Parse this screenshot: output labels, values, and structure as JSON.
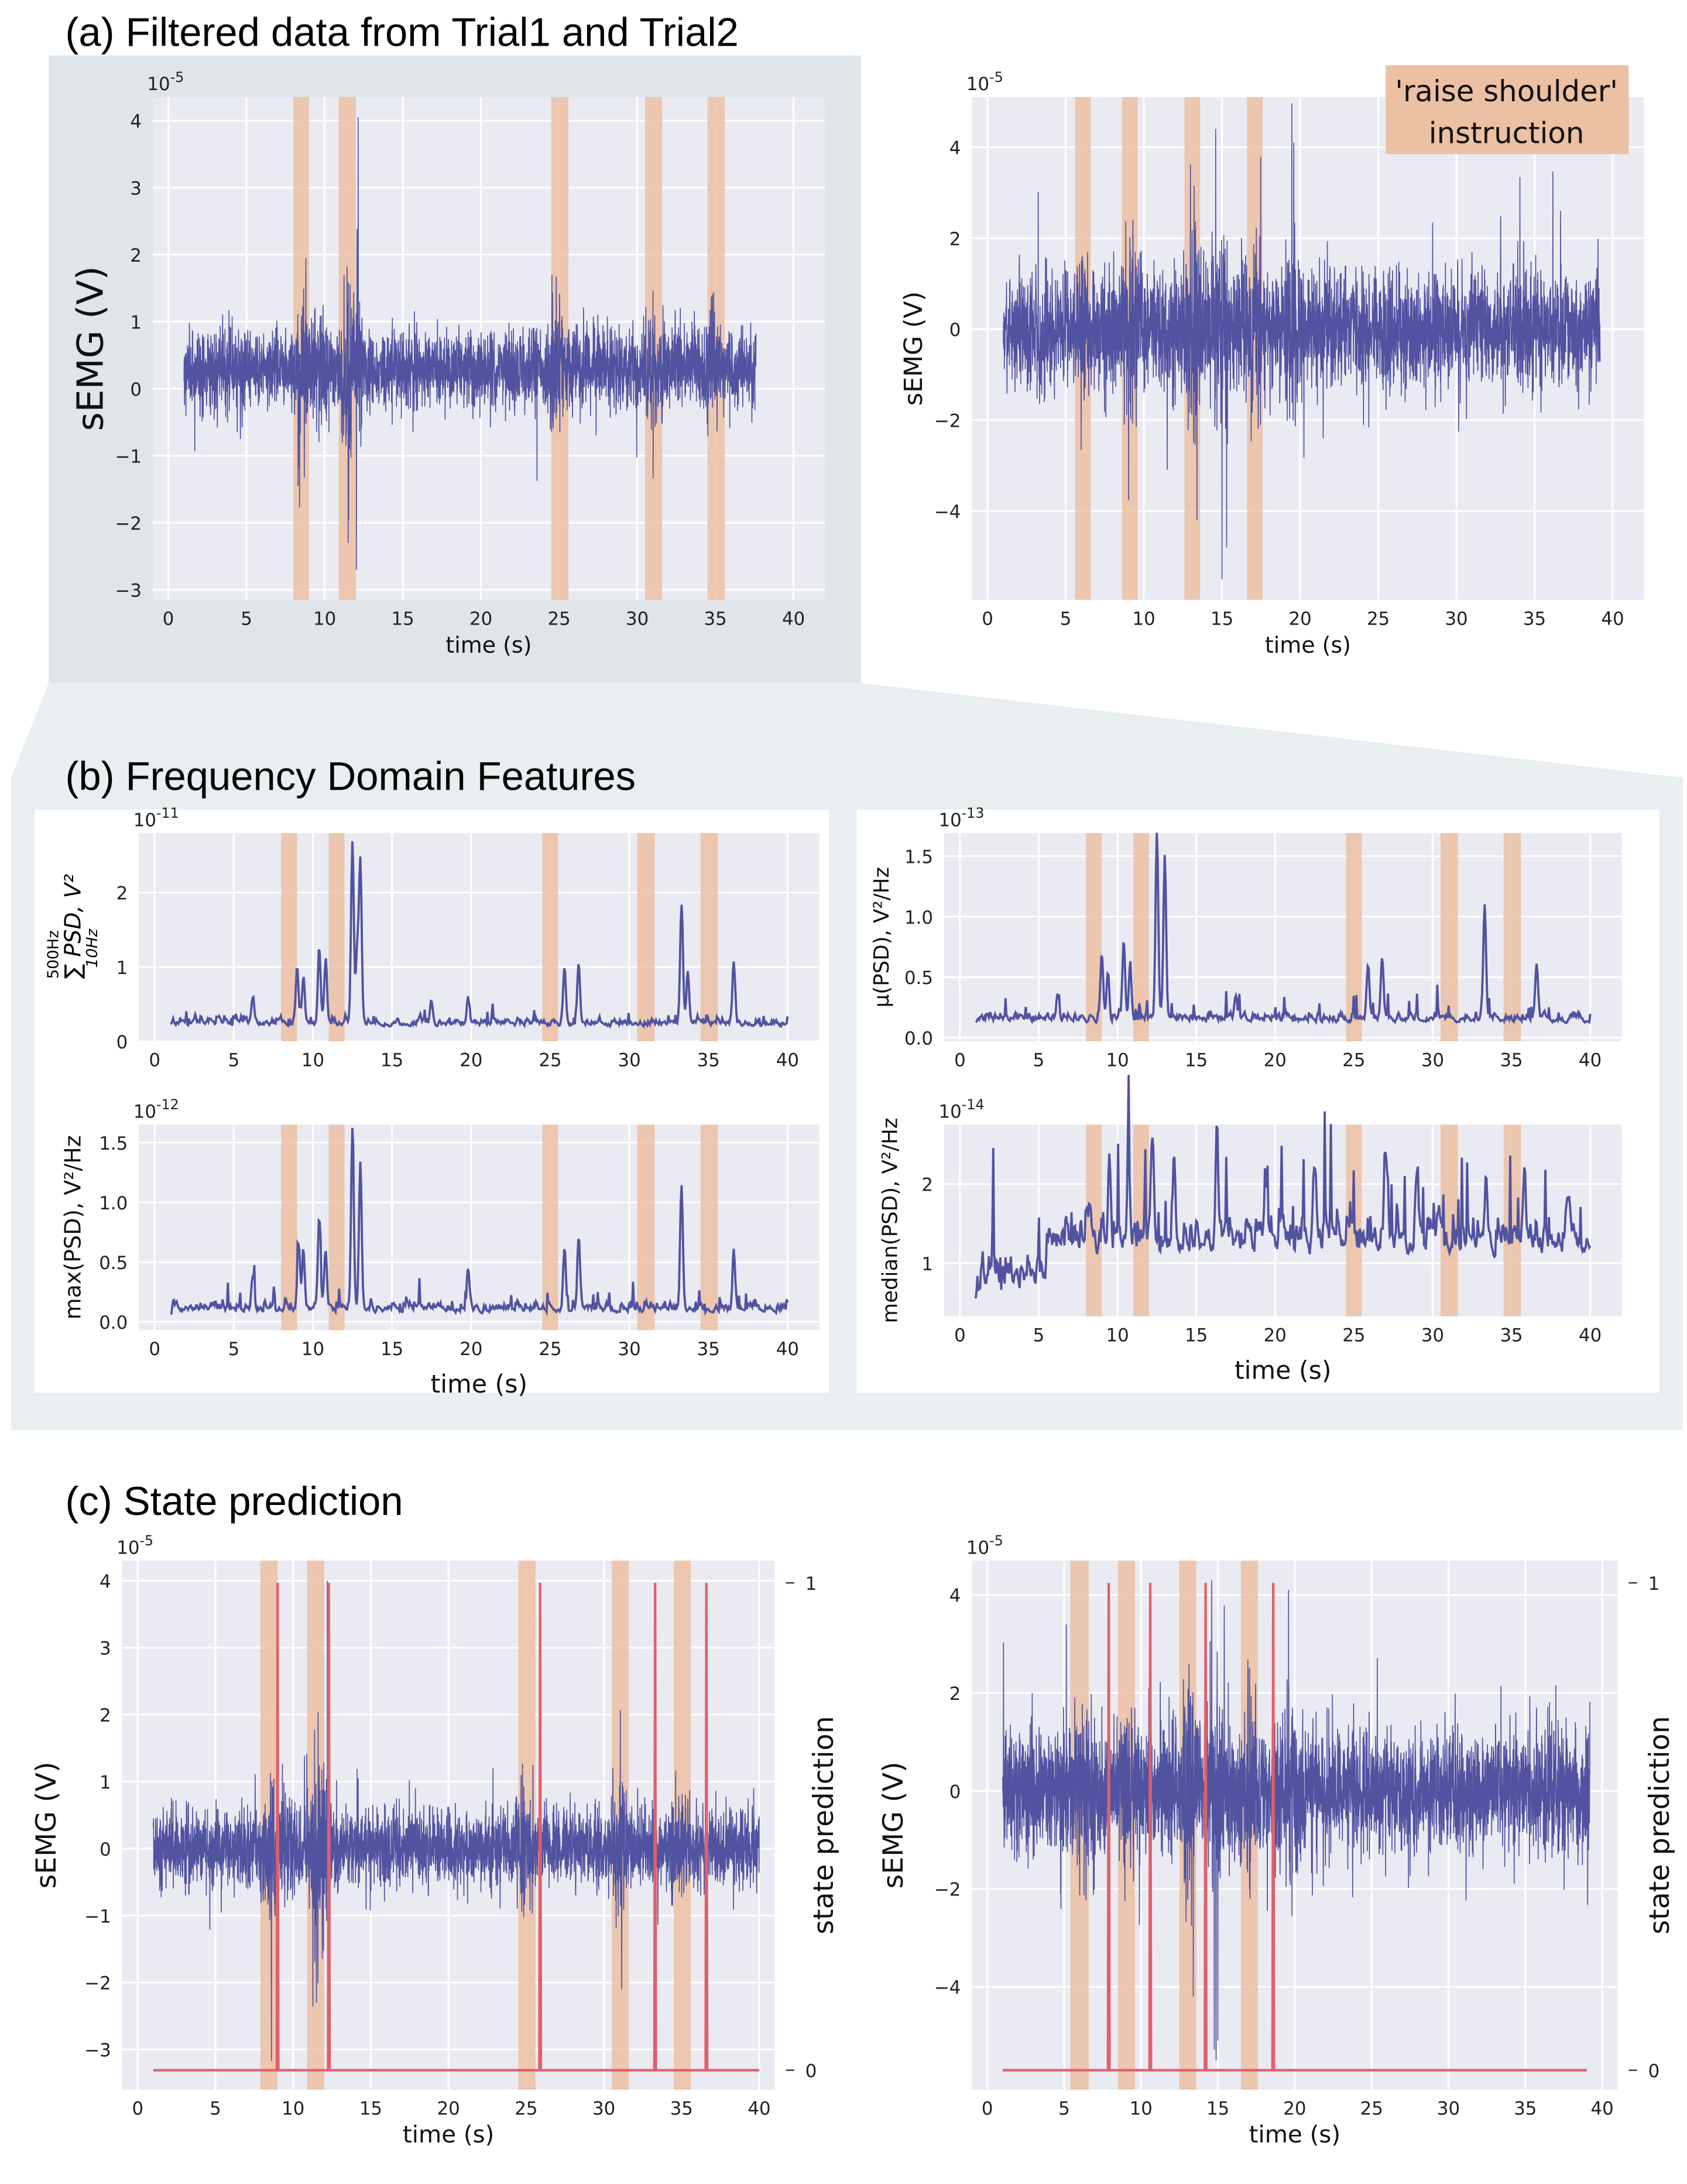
{
  "titles": {
    "a": "(a) Filtered data from Trial1 and Trial2",
    "b": "(b) Frequency Domain Features",
    "c": "(c) State prediction"
  },
  "legend_box": {
    "line1": "'raise shoulder'",
    "line2": "instruction"
  },
  "colors": {
    "signal": "#5053a0",
    "band": "#ecc0a2",
    "state": "#e0606a",
    "plot_bg": "#eaeaf2",
    "panel_a_bg": "#dfe5e8",
    "panel_b_bg": "#e9eef0"
  },
  "chart_data": [
    {
      "id": "a1",
      "type": "line",
      "title": "",
      "xlabel": "time (s)",
      "ylabel": "sEMG (V)",
      "exponent": "-5",
      "xlim": [
        -1,
        42
      ],
      "ylim": [
        -3.15,
        4.35
      ],
      "xticks": [
        0,
        5,
        10,
        15,
        20,
        25,
        30,
        35,
        40
      ],
      "yticks": [
        -3,
        -2,
        -1,
        0,
        1,
        2,
        3,
        4
      ],
      "ytick_labels": [
        "−3",
        "−2",
        "−1",
        "0",
        "1",
        "2",
        "3",
        "4"
      ],
      "grid": true,
      "bands": [
        [
          8.0,
          9.0
        ],
        [
          10.9,
          12.0
        ],
        [
          24.5,
          25.6
        ],
        [
          30.5,
          31.6
        ],
        [
          34.5,
          35.6
        ]
      ],
      "series": [
        {
          "name": "sEMG Trial1",
          "kind": "emg",
          "t_range": [
            1,
            37.6
          ],
          "offset": 0.3,
          "noise_std": 0.28,
          "bursts": [
            [
              8.6,
              1.1
            ],
            [
              9.7,
              0.8
            ],
            [
              11.5,
              1.5
            ],
            [
              12.1,
              1.0
            ],
            [
              24.8,
              0.9
            ],
            [
              31.0,
              1.1
            ],
            [
              34.6,
              0.6
            ]
          ],
          "spikes": [
            [
              12.15,
              4.05
            ],
            [
              11.5,
              -2.3
            ],
            [
              8.3,
              -1.45
            ],
            [
              8.8,
              1.95
            ]
          ]
        }
      ]
    },
    {
      "id": "a2",
      "type": "line",
      "xlabel": "time (s)",
      "ylabel": "sEMG (V)",
      "exponent": "-5",
      "xlim": [
        -1,
        42
      ],
      "ylim": [
        -5.95,
        5.1
      ],
      "xticks": [
        0,
        5,
        10,
        15,
        20,
        25,
        30,
        35,
        40
      ],
      "yticks": [
        -4,
        -2,
        0,
        2,
        4
      ],
      "ytick_labels": [
        "−4",
        "−2",
        "0",
        "2",
        "4"
      ],
      "grid": true,
      "bands": [
        [
          5.6,
          6.6
        ],
        [
          8.6,
          9.6
        ],
        [
          12.6,
          13.6
        ],
        [
          16.6,
          17.6
        ]
      ],
      "series": [
        {
          "name": "sEMG Trial2",
          "kind": "emg",
          "t_range": [
            1,
            39.2
          ],
          "offset": 0.0,
          "noise_std": 0.62,
          "bursts": [
            [
              6.0,
              0.6
            ],
            [
              9.1,
              0.7
            ],
            [
              13.1,
              0.8
            ],
            [
              14.8,
              1.0
            ],
            [
              17.1,
              0.7
            ],
            [
              19.5,
              0.6
            ]
          ],
          "spikes": [
            [
              14.6,
              4.4
            ],
            [
              15.0,
              -5.5
            ],
            [
              19.6,
              4.1
            ],
            [
              13.4,
              -4.2
            ],
            [
              15.3,
              -4.8
            ]
          ]
        }
      ]
    },
    {
      "id": "b1",
      "type": "line",
      "xlabel": "",
      "ylabel": "∑ PSD, V²",
      "ylabel_upper": "500Hz",
      "ylabel_lower": "10Hz",
      "exponent": "-11",
      "xlim": [
        -1,
        42
      ],
      "ylim": [
        0,
        2.8
      ],
      "xticks": [
        0,
        5,
        10,
        15,
        20,
        25,
        30,
        35,
        40
      ],
      "yticks": [
        0,
        1,
        2
      ],
      "ytick_labels": [
        "0",
        "1",
        "2"
      ],
      "grid": true,
      "bands": [
        [
          8.0,
          9.0
        ],
        [
          11.0,
          12.0
        ],
        [
          24.5,
          25.5
        ],
        [
          30.5,
          31.6
        ],
        [
          34.5,
          35.6
        ]
      ],
      "series": [
        {
          "name": "sum PSD",
          "kind": "feature",
          "t_range": [
            1,
            40
          ],
          "base": 0.18,
          "jitter": 0.1,
          "peaks": [
            [
              9.0,
              0.75
            ],
            [
              9.4,
              0.6
            ],
            [
              10.4,
              1.05
            ],
            [
              10.8,
              0.8
            ],
            [
              12.5,
              2.45
            ],
            [
              13.0,
              2.2
            ],
            [
              12.8,
              1.0
            ],
            [
              25.9,
              0.75
            ],
            [
              26.8,
              0.8
            ],
            [
              33.3,
              1.6
            ],
            [
              33.7,
              0.7
            ],
            [
              36.6,
              0.8
            ],
            [
              17.5,
              0.3
            ],
            [
              19.8,
              0.35
            ],
            [
              6.2,
              0.33
            ]
          ]
        }
      ]
    },
    {
      "id": "b2",
      "type": "line",
      "xlabel": "time (s)",
      "ylabel": "max(PSD), V²/Hz",
      "exponent": "-12",
      "xlim": [
        -1,
        42
      ],
      "ylim": [
        -0.07,
        1.65
      ],
      "xticks": [
        0,
        5,
        10,
        15,
        20,
        25,
        30,
        35,
        40
      ],
      "yticks": [
        0,
        0.5,
        1.0,
        1.5
      ],
      "ytick_labels": [
        "0.0",
        "0.5",
        "1.0",
        "1.5"
      ],
      "grid": true,
      "bands": [
        [
          8.0,
          9.0
        ],
        [
          11.0,
          12.0
        ],
        [
          24.5,
          25.5
        ],
        [
          30.5,
          31.6
        ],
        [
          34.5,
          35.6
        ]
      ],
      "series": [
        {
          "name": "max PSD",
          "kind": "feature",
          "t_range": [
            1,
            40
          ],
          "base": 0.06,
          "jitter": 0.08,
          "peaks": [
            [
              9.1,
              0.55
            ],
            [
              9.4,
              0.45
            ],
            [
              10.4,
              0.75
            ],
            [
              10.8,
              0.5
            ],
            [
              12.5,
              1.5
            ],
            [
              13.0,
              1.25
            ],
            [
              25.9,
              0.5
            ],
            [
              26.8,
              0.6
            ],
            [
              33.3,
              1.0
            ],
            [
              36.6,
              0.45
            ],
            [
              6.2,
              0.28
            ],
            [
              19.8,
              0.25
            ]
          ]
        }
      ]
    },
    {
      "id": "b3",
      "type": "line",
      "xlabel": "",
      "ylabel": "μ(PSD), V²/Hz",
      "exponent": "-13",
      "xlim": [
        -1,
        42
      ],
      "ylim": [
        -0.03,
        1.69
      ],
      "xticks": [
        0,
        5,
        10,
        15,
        20,
        25,
        30,
        35,
        40
      ],
      "yticks": [
        0,
        0.5,
        1.0,
        1.5
      ],
      "ytick_labels": [
        "0.0",
        "0.5",
        "1.0",
        "1.5"
      ],
      "grid": true,
      "bands": [
        [
          8.0,
          9.0
        ],
        [
          11.0,
          12.0
        ],
        [
          24.5,
          25.5
        ],
        [
          30.5,
          31.6
        ],
        [
          34.5,
          35.6
        ]
      ],
      "series": [
        {
          "name": "mean PSD",
          "kind": "feature",
          "t_range": [
            1,
            40
          ],
          "base": 0.11,
          "jitter": 0.07,
          "peaks": [
            [
              9.0,
              0.5
            ],
            [
              9.4,
              0.4
            ],
            [
              10.4,
              0.65
            ],
            [
              10.8,
              0.45
            ],
            [
              12.5,
              1.55
            ],
            [
              13.0,
              1.35
            ],
            [
              25.9,
              0.45
            ],
            [
              26.8,
              0.5
            ],
            [
              33.3,
              0.95
            ],
            [
              36.6,
              0.45
            ],
            [
              6.2,
              0.22
            ],
            [
              17.5,
              0.2
            ]
          ]
        }
      ]
    },
    {
      "id": "b4",
      "type": "line",
      "xlabel": "time (s)",
      "ylabel": "median(PSD), V²/Hz",
      "exponent": "-14",
      "xlim": [
        -1,
        42
      ],
      "ylim": [
        0.33,
        2.75
      ],
      "xticks": [
        0,
        5,
        10,
        15,
        20,
        25,
        30,
        35,
        40
      ],
      "yticks": [
        1,
        2
      ],
      "ytick_labels": [
        "1",
        "2"
      ],
      "grid": true,
      "bands": [
        [
          8.0,
          9.0
        ],
        [
          11.0,
          12.0
        ],
        [
          24.5,
          25.5
        ],
        [
          30.5,
          31.6
        ],
        [
          34.5,
          35.6
        ]
      ],
      "series": [
        {
          "name": "median PSD",
          "kind": "feature",
          "t_range": [
            1,
            40
          ],
          "base": 0.55,
          "jitter": 0.45,
          "ramp_after": 5.5,
          "ramp_level": 0.45,
          "peaks": [
            [
              9.5,
              1.0
            ],
            [
              10.7,
              1.1
            ],
            [
              12.2,
              1.4
            ],
            [
              13.6,
              1.0
            ],
            [
              16.3,
              1.4
            ],
            [
              19.4,
              0.9
            ],
            [
              22.5,
              0.8
            ],
            [
              27.0,
              1.0
            ],
            [
              29.0,
              0.9
            ],
            [
              33.4,
              0.9
            ],
            [
              35.8,
              0.9
            ],
            [
              38.5,
              0.5
            ]
          ]
        }
      ]
    },
    {
      "id": "c1",
      "type": "line",
      "xlabel": "time (s)",
      "ylabel": "sEMG (V)",
      "ylabel_right": "state prediction",
      "exponent": "-5",
      "xlim": [
        -1,
        41
      ],
      "ylim": [
        -3.6,
        4.3
      ],
      "xticks": [
        0,
        5,
        10,
        15,
        20,
        25,
        30,
        35,
        40
      ],
      "yticks": [
        -3,
        -2,
        -1,
        0,
        1,
        2,
        3,
        4
      ],
      "ytick_labels": [
        "−3",
        "−2",
        "−1",
        "0",
        "1",
        "2",
        "3",
        "4"
      ],
      "y2ticks": [
        0,
        1
      ],
      "y2tick_labels": [
        "0",
        "1"
      ],
      "grid": true,
      "bands": [
        [
          7.9,
          9.0
        ],
        [
          10.9,
          12.0
        ],
        [
          24.5,
          25.6
        ],
        [
          30.5,
          31.6
        ],
        [
          34.5,
          35.6
        ]
      ],
      "series": [
        {
          "name": "sEMG Trial1",
          "kind": "emg",
          "t_range": [
            1,
            40
          ],
          "offset": 0.0,
          "noise_std": 0.28,
          "bursts": [
            [
              8.6,
              1.1
            ],
            [
              9.7,
              0.8
            ],
            [
              11.5,
              1.5
            ],
            [
              12.1,
              1.0
            ],
            [
              24.8,
              0.9
            ],
            [
              31.0,
              1.1
            ],
            [
              34.6,
              0.6
            ]
          ],
          "spikes": [
            [
              12.2,
              4.0
            ],
            [
              11.5,
              -2.3
            ],
            [
              8.6,
              -2.1
            ],
            [
              9.0,
              1.9
            ]
          ]
        },
        {
          "name": "state prediction",
          "kind": "state",
          "t_range": [
            1,
            40
          ],
          "events": [
            9.0,
            12.3,
            25.9,
            33.3,
            36.6
          ]
        }
      ]
    },
    {
      "id": "c2",
      "type": "line",
      "xlabel": "time (s)",
      "ylabel": "sEMG (V)",
      "ylabel_right": "state prediction",
      "exponent": "-5",
      "xlim": [
        -1,
        41
      ],
      "ylim": [
        -6.1,
        4.7
      ],
      "xticks": [
        0,
        5,
        10,
        15,
        20,
        25,
        30,
        35,
        40
      ],
      "yticks": [
        -4,
        -2,
        0,
        2,
        4
      ],
      "ytick_labels": [
        "−4",
        "−2",
        "0",
        "2",
        "4"
      ],
      "y2ticks": [
        0,
        1
      ],
      "y2tick_labels": [
        "0",
        "1"
      ],
      "grid": true,
      "bands": [
        [
          5.4,
          6.6
        ],
        [
          8.5,
          9.6
        ],
        [
          12.5,
          13.6
        ],
        [
          16.5,
          17.6
        ]
      ],
      "series": [
        {
          "name": "sEMG Trial2",
          "kind": "emg",
          "t_range": [
            1,
            39.2
          ],
          "offset": 0.0,
          "noise_std": 0.62,
          "bursts": [
            [
              6.0,
              0.6
            ],
            [
              9.1,
              0.7
            ],
            [
              13.1,
              0.8
            ],
            [
              14.8,
              1.0
            ],
            [
              17.1,
              0.7
            ],
            [
              19.5,
              0.6
            ]
          ],
          "spikes": [
            [
              14.6,
              4.3
            ],
            [
              15.0,
              -5.1
            ],
            [
              19.6,
              4.1
            ],
            [
              13.4,
              -4.2
            ]
          ]
        },
        {
          "name": "state prediction",
          "kind": "state",
          "t_range": [
            1,
            39
          ],
          "events": [
            7.9,
            10.6,
            14.2,
            18.6
          ]
        }
      ]
    }
  ]
}
